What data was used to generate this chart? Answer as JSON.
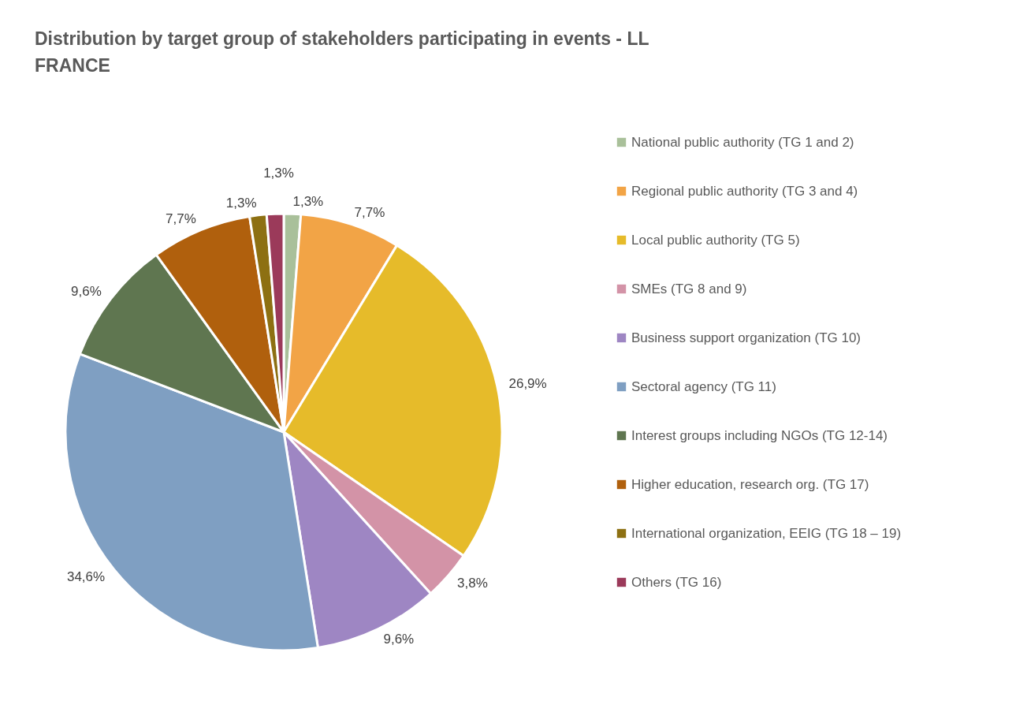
{
  "chart_data": {
    "type": "pie",
    "title": "Distribution by target group of stakeholders participating in events - LL FRANCE",
    "categories": [
      "National public authority (TG 1 and 2)",
      "Regional public authority (TG 3 and 4)",
      "Local public authority (TG 5)",
      "SMEs (TG 8 and 9)",
      "Business support organization (TG 10)",
      "Sectoral agency (TG 11)",
      "Interest groups including NGOs (TG 12-14)",
      "Higher education, research org. (TG 17)",
      "International organization, EEIG (TG 18 – 19)",
      "Others (TG 16)"
    ],
    "values": [
      1.3,
      7.7,
      26.9,
      3.8,
      9.6,
      34.6,
      9.6,
      7.7,
      1.3,
      1.3
    ],
    "value_labels": [
      "1,3%",
      "7,7%",
      "26,9%",
      "3,8%",
      "9,6%",
      "34,6%",
      "9,6%",
      "7,7%",
      "1,3%",
      "1,3%"
    ],
    "colors": [
      "#a9c09a",
      "#f2a446",
      "#e6bb2a",
      "#d393a7",
      "#9e86c3",
      "#7f9fc2",
      "#5f7650",
      "#b0600d",
      "#8d7012",
      "#9b3a5a"
    ],
    "legend": "right"
  }
}
